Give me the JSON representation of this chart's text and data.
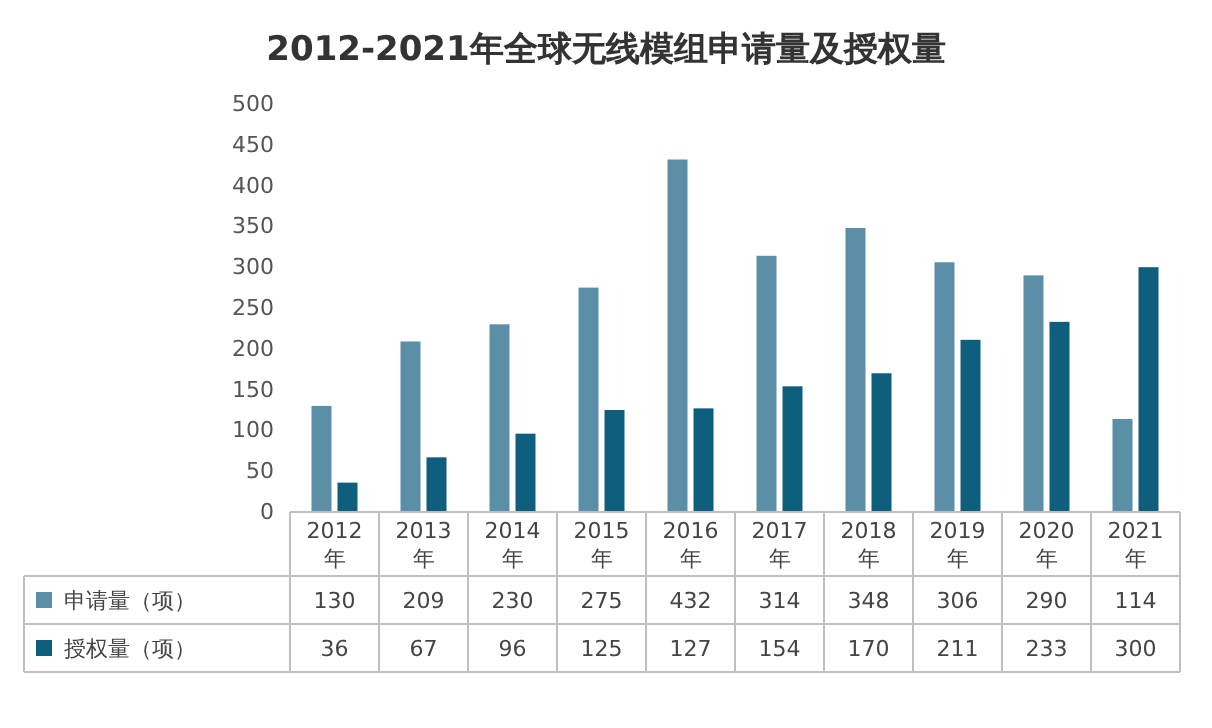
{
  "chart_data": {
    "type": "bar",
    "title": "2012-2021年全球无线模组申请量及授权量",
    "categories": [
      "2012年",
      "2013年",
      "2014年",
      "2015年",
      "2016年",
      "2017年",
      "2018年",
      "2019年",
      "2020年",
      "2021年"
    ],
    "series": [
      {
        "name": "申请量（项）",
        "color": "#5b8fa8",
        "values": [
          130,
          209,
          230,
          275,
          432,
          314,
          348,
          306,
          290,
          114
        ]
      },
      {
        "name": "授权量（项）",
        "color": "#0e5f7e",
        "values": [
          36,
          67,
          96,
          125,
          127,
          154,
          170,
          211,
          233,
          300
        ]
      }
    ],
    "ylim": [
      0,
      500
    ],
    "yticks": [
      0,
      50,
      100,
      150,
      200,
      250,
      300,
      350,
      400,
      450,
      500
    ],
    "grid": false,
    "data_labels": true,
    "legend": "bottom"
  }
}
